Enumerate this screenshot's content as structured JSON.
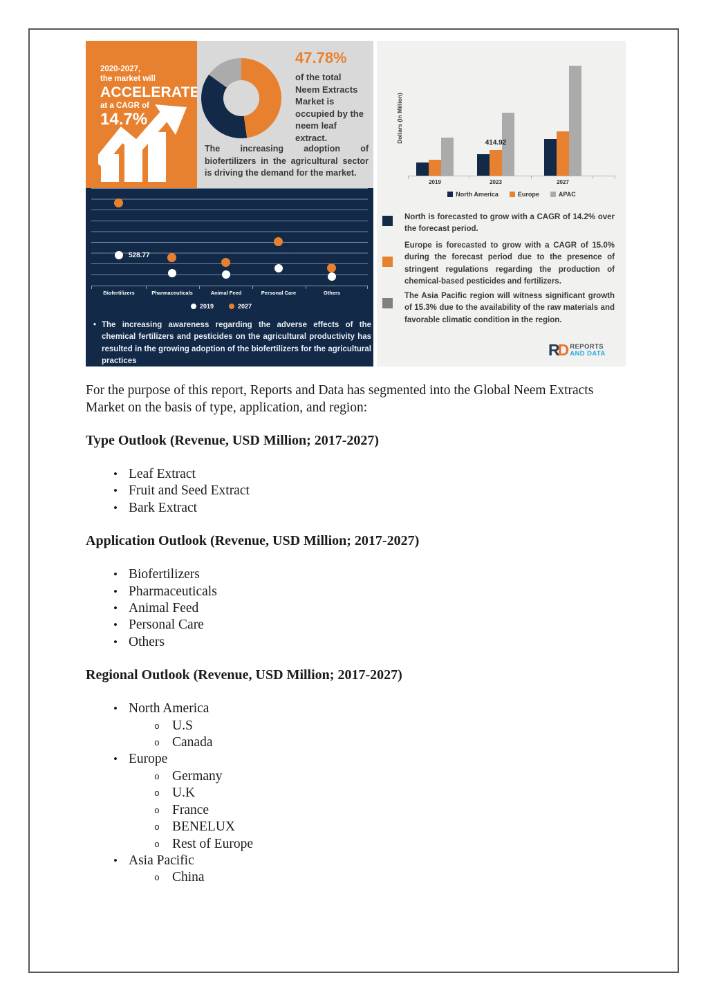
{
  "colors": {
    "orange": "#E8812F",
    "navy": "#122947",
    "gray": "#ABABAB",
    "panel_mid_bg": "#D9D9D9",
    "panel_right_bg": "#F1F1F0",
    "logo_blue": "#2BA9E0"
  },
  "infographic": {
    "accelerate_panel": {
      "line1": "2020-2027,",
      "line2": "the market will",
      "line3": "ACCELERATE",
      "line4": "at a CAGR of",
      "line5": "14.7%"
    },
    "donut_section": {
      "stat_value": "47.78%",
      "stat_caption": "of the total Neem Extracts Market is occupied by the neem leaf extract.",
      "note": "The increasing adoption of biofertilizers in the agricultural sector is driving the demand for the market."
    },
    "navy_note": "The increasing awareness regarding the adverse effects of the chemical fertilizers and pesticides on the agricultural productivity has resulted in the growing adoption of the biofertilizers for the agricultural practices",
    "region_notes": [
      {
        "color": "#122947",
        "text": "North is forecasted to grow with a CAGR of 14.2% over the forecast period."
      },
      {
        "color": "#E8812F",
        "text": "Europe is forecasted to grow with a CAGR of 15.0% during the forecast period due to the presence of stringent regulations regarding the production of chemical-based pesticides and fertilizers."
      },
      {
        "color": "#808080",
        "text": "The Asia Pacific region will witness significant growth of 15.3% due to the availability of the raw materials and favorable climatic condition in the region."
      }
    ],
    "logo": {
      "mark_r": "R",
      "mark_d": "D",
      "line1": "REPORTS",
      "line2": "AND DATA"
    }
  },
  "chart_data": [
    {
      "type": "pie",
      "subtype": "donut",
      "labels": [
        "Neem leaf extract",
        "Unlabeled segment",
        "Unlabeled segment"
      ],
      "values": [
        47.78,
        37.2,
        15.02
      ],
      "colors": [
        "#E8812F",
        "#122947",
        "#ABABAB"
      ],
      "annotation": "47.78% of the total Neem Extracts Market is occupied by the neem leaf extract."
    },
    {
      "type": "scatter",
      "subtype": "dot-plot",
      "categories": [
        "Biofertilizers",
        "Pharmaceuticals",
        "Animal Feed",
        "Personal Care",
        "Others"
      ],
      "series": [
        {
          "name": "2019",
          "color": "#FFFFFF",
          "values": [
            528.77,
            216,
            192,
            300,
            156
          ]
        },
        {
          "name": "2027",
          "color": "#E8812F",
          "values": [
            1442,
            493,
            409,
            769,
            312
          ]
        }
      ],
      "labeled_point": {
        "category": "Biofertilizers",
        "series": "2019",
        "value": 528.77
      },
      "grid": true,
      "legend_position": "bottom"
    },
    {
      "type": "bar",
      "categories": [
        "2019",
        "2023",
        "2027"
      ],
      "series": [
        {
          "name": "North America",
          "color": "#122947",
          "values": [
            213,
            348,
            594
          ]
        },
        {
          "name": "Europe",
          "color": "#E8812F",
          "values": [
            258,
            414.92,
            717
          ]
        },
        {
          "name": "APAC",
          "color": "#ABABAB",
          "values": [
            617,
            1020,
            1782
          ]
        }
      ],
      "ylabel": "Dollars (In Million)",
      "labeled_point": {
        "category": "2023",
        "series": "Europe",
        "value": 414.92
      },
      "legend_position": "bottom",
      "grid": false
    }
  ],
  "body": {
    "intro": "For the purpose of this report, Reports and Data has segmented into the Global Neem Extracts Market on the basis of type, application, and region:",
    "sections": [
      {
        "heading": "Type Outlook (Revenue, USD Million; 2017-2027)",
        "items": [
          "Leaf Extract",
          "Fruit and Seed Extract",
          "Bark Extract"
        ]
      },
      {
        "heading": "Application Outlook (Revenue, USD Million; 2017-2027)",
        "items": [
          "Biofertilizers",
          "Pharmaceuticals",
          "Animal Feed",
          "Personal Care",
          "Others"
        ]
      },
      {
        "heading": "Regional Outlook (Revenue, USD Million; 2017-2027)",
        "items": [
          {
            "label": "North America",
            "children": [
              "U.S",
              "Canada"
            ]
          },
          {
            "label": "Europe",
            "children": [
              "Germany",
              "U.K",
              "France",
              "BENELUX",
              "Rest of Europe"
            ]
          },
          {
            "label": "Asia Pacific",
            "children": [
              "China"
            ]
          }
        ]
      }
    ]
  }
}
